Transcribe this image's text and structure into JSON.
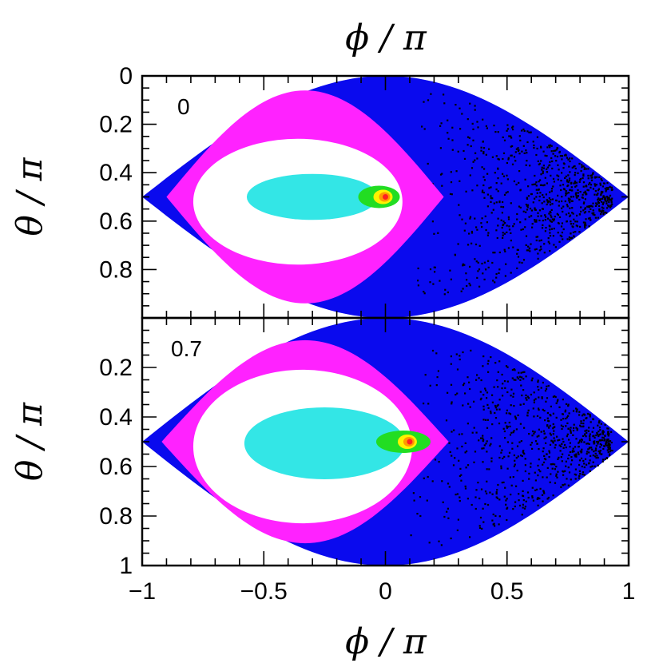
{
  "chart_data": {
    "type": "heatmap",
    "x_title": "ϕ / π",
    "colors": {
      "very_high": "#ff2020",
      "high": "#ff9a00",
      "mid_high": "#fff200",
      "mid": "#22dd22",
      "mid_low": "#33e6e6",
      "low": "#ffffff",
      "lower": "#ff22ff",
      "lowest": "#0a0aee",
      "empty": "#000000"
    },
    "x_ticks": [
      "−1",
      "−0.5",
      "0",
      "0.5",
      "1"
    ],
    "x_tick_values": [
      -1,
      -0.5,
      0,
      0.5,
      1
    ],
    "xlim": [
      -1,
      1
    ],
    "panels": [
      {
        "label": "0",
        "y_title": "θ / π",
        "ylim": [
          0,
          1
        ],
        "y_ticks": [
          "0",
          "0.2",
          "0.4",
          "0.6",
          "0.8"
        ],
        "y_tick_values": [
          0,
          0.2,
          0.4,
          0.6,
          0.8
        ],
        "peak": {
          "x": 0.0,
          "y": 0.5
        }
      },
      {
        "label": "0.7",
        "y_title": "θ / π",
        "ylim": [
          0,
          1
        ],
        "y_ticks": [
          "0.2",
          "0.4",
          "0.6",
          "0.8",
          "1"
        ],
        "y_tick_values": [
          0.2,
          0.4,
          0.6,
          0.8,
          1
        ],
        "peak": {
          "x": 0.1,
          "y": 0.5
        }
      }
    ]
  }
}
